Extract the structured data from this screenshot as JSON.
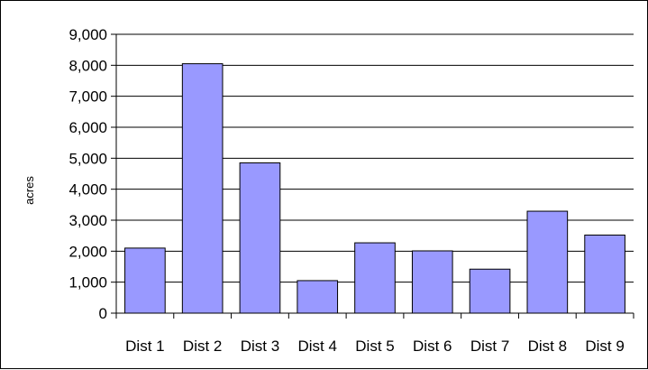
{
  "chart_data": {
    "type": "bar",
    "title": "",
    "xlabel": "",
    "ylabel": "acres",
    "categories": [
      "Dist 1",
      "Dist 2",
      "Dist 3",
      "Dist 4",
      "Dist 5",
      "Dist 6",
      "Dist 7",
      "Dist 8",
      "Dist 9"
    ],
    "values": [
      2100,
      8050,
      4850,
      1050,
      2270,
      2010,
      1420,
      3290,
      2520
    ],
    "ylim": [
      0,
      9000
    ],
    "yticks": [
      0,
      1000,
      2000,
      3000,
      4000,
      5000,
      6000,
      7000,
      8000,
      9000
    ],
    "ytick_labels": [
      "0",
      "1,000",
      "2,000",
      "3,000",
      "4,000",
      "5,000",
      "6,000",
      "7,000",
      "8,000",
      "9,000"
    ],
    "grid": true,
    "legend": "none",
    "colors": {
      "bar_fill": "#9999ff",
      "bar_stroke": "#000000",
      "gridline": "#000000",
      "background": "#ffffff"
    }
  }
}
